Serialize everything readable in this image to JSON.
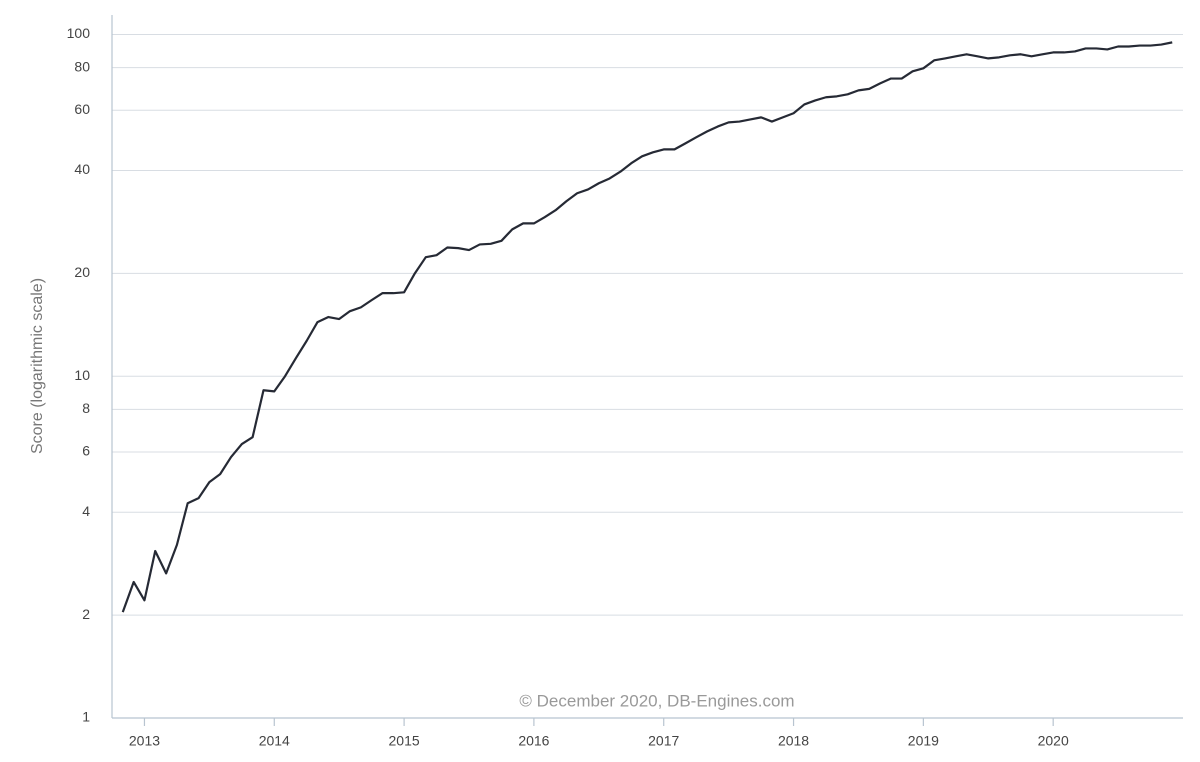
{
  "chart_data": {
    "type": "line",
    "y_label": "Score (logarithmic scale)",
    "annotation": "© December 2020, DB-Engines.com",
    "log_scale": true,
    "grid": true,
    "xlim": [
      2012.75,
      2021.0
    ],
    "xticks": [
      2013,
      2014,
      2015,
      2016,
      2017,
      2018,
      2019,
      2020
    ],
    "ylim": [
      1,
      114
    ],
    "yticks": [
      1,
      2,
      4,
      6,
      8,
      10,
      20,
      40,
      60,
      80,
      100
    ],
    "x": [
      2012.833,
      2012.917,
      2013.0,
      2013.083,
      2013.167,
      2013.25,
      2013.333,
      2013.417,
      2013.5,
      2013.583,
      2013.667,
      2013.75,
      2013.833,
      2013.917,
      2014.0,
      2014.083,
      2014.167,
      2014.25,
      2014.333,
      2014.417,
      2014.5,
      2014.583,
      2014.667,
      2014.75,
      2014.833,
      2014.917,
      2015.0,
      2015.083,
      2015.167,
      2015.25,
      2015.333,
      2015.417,
      2015.5,
      2015.583,
      2015.667,
      2015.75,
      2015.833,
      2015.917,
      2016.0,
      2016.083,
      2016.167,
      2016.25,
      2016.333,
      2016.417,
      2016.5,
      2016.583,
      2016.667,
      2016.75,
      2016.833,
      2016.917,
      2017.0,
      2017.083,
      2017.167,
      2017.25,
      2017.333,
      2017.417,
      2017.5,
      2017.583,
      2017.667,
      2017.75,
      2017.833,
      2017.917,
      2018.0,
      2018.083,
      2018.167,
      2018.25,
      2018.333,
      2018.417,
      2018.5,
      2018.583,
      2018.667,
      2018.75,
      2018.833,
      2018.917,
      2019.0,
      2019.083,
      2019.167,
      2019.25,
      2019.333,
      2019.417,
      2019.5,
      2019.583,
      2019.667,
      2019.75,
      2019.833,
      2019.917,
      2020.0,
      2020.083,
      2020.167,
      2020.25,
      2020.333,
      2020.417,
      2020.5,
      2020.583,
      2020.667,
      2020.75,
      2020.833,
      2020.917
    ],
    "series": [
      {
        "name": "Score",
        "color": "#262a35",
        "values": [
          2.04,
          2.5,
          2.21,
          3.08,
          2.65,
          3.21,
          4.25,
          4.4,
          4.9,
          5.17,
          5.8,
          6.33,
          6.63,
          9.1,
          9.03,
          10.0,
          11.3,
          12.7,
          14.4,
          14.9,
          14.7,
          15.5,
          15.9,
          16.7,
          17.5,
          17.5,
          17.6,
          20.0,
          22.3,
          22.6,
          23.8,
          23.7,
          23.4,
          24.3,
          24.4,
          24.9,
          26.9,
          28.0,
          28.0,
          29.2,
          30.6,
          32.5,
          34.3,
          35.2,
          36.7,
          37.9,
          39.7,
          42.0,
          44.0,
          45.2,
          46.1,
          46.1,
          48.0,
          50.0,
          52.0,
          53.8,
          55.3,
          55.6,
          56.4,
          57.2,
          55.6,
          57.2,
          58.8,
          62.4,
          64.1,
          65.5,
          65.9,
          66.8,
          68.6,
          69.3,
          71.9,
          74.3,
          74.3,
          78.0,
          79.6,
          84.0,
          85.1,
          86.3,
          87.5,
          86.3,
          85.1,
          85.7,
          86.9,
          87.5,
          86.3,
          87.5,
          88.6,
          88.6,
          89.2,
          91.0,
          91.0,
          90.4,
          92.2,
          92.2,
          92.8,
          92.8,
          93.4,
          94.8
        ]
      }
    ]
  }
}
